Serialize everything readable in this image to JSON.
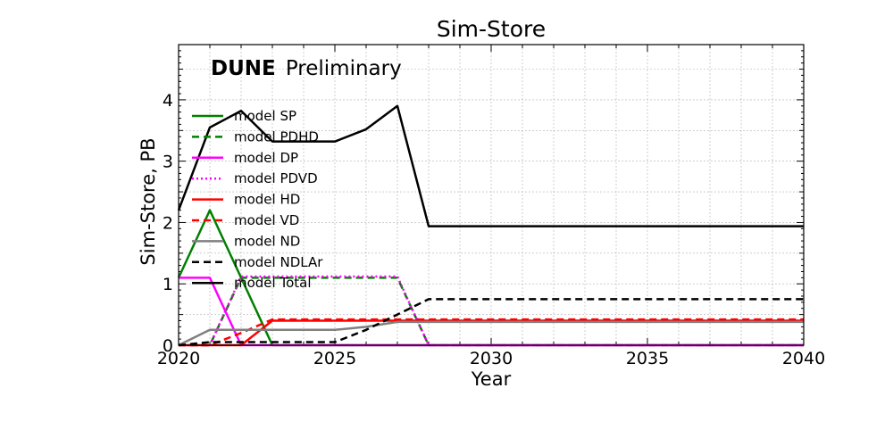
{
  "chart_data": {
    "type": "line",
    "title": "Sim-Store",
    "xlabel": "Year",
    "ylabel": "Sim-Store, PB",
    "xlim": [
      2020,
      2040
    ],
    "ylim": [
      0,
      4.9
    ],
    "xticks": [
      2020,
      2025,
      2030,
      2035,
      2040
    ],
    "yticks": [
      0,
      1,
      2,
      3,
      4
    ],
    "grid": true,
    "legend_position": "upper-left",
    "annotation": {
      "brand": "DUNE",
      "text": "Preliminary"
    },
    "x": [
      2020,
      2021,
      2022,
      2023,
      2024,
      2025,
      2026,
      2027,
      2028,
      2029,
      2030,
      2031,
      2032,
      2033,
      2034,
      2035,
      2036,
      2037,
      2038,
      2039,
      2040
    ],
    "series": [
      {
        "name": "model SP",
        "color": "#008000",
        "dash": "solid",
        "values": [
          1.1,
          2.2,
          1.1,
          0,
          0,
          0,
          0,
          0,
          0,
          0,
          0,
          0,
          0,
          0,
          0,
          0,
          0,
          0,
          0,
          0,
          0
        ]
      },
      {
        "name": "model PDHD",
        "color": "#008000",
        "dash": "dashed",
        "values": [
          0,
          0,
          1.1,
          1.1,
          1.1,
          1.1,
          1.1,
          1.1,
          0,
          0,
          0,
          0,
          0,
          0,
          0,
          0,
          0,
          0,
          0,
          0,
          0
        ]
      },
      {
        "name": "model DP",
        "color": "#ff00ff",
        "dash": "solid",
        "values": [
          1.1,
          1.1,
          0,
          0,
          0,
          0,
          0,
          0,
          0,
          0,
          0,
          0,
          0,
          0,
          0,
          0,
          0,
          0,
          0,
          0,
          0
        ]
      },
      {
        "name": "model PDVD",
        "color": "#ff00ff",
        "dash": "dotted",
        "values": [
          0,
          0,
          1.12,
          1.12,
          1.12,
          1.12,
          1.12,
          1.12,
          0,
          0,
          0,
          0,
          0,
          0,
          0,
          0,
          0,
          0,
          0,
          0,
          0
        ]
      },
      {
        "name": "model HD",
        "color": "#ff0000",
        "dash": "solid",
        "values": [
          0,
          0,
          0,
          0.4,
          0.4,
          0.4,
          0.4,
          0.4,
          0.4,
          0.4,
          0.4,
          0.4,
          0.4,
          0.4,
          0.4,
          0.4,
          0.4,
          0.4,
          0.4,
          0.4,
          0.4
        ]
      },
      {
        "name": "model VD",
        "color": "#ff0000",
        "dash": "dashed",
        "values": [
          0,
          0,
          0.2,
          0.42,
          0.42,
          0.42,
          0.42,
          0.42,
          0.42,
          0.42,
          0.42,
          0.42,
          0.42,
          0.42,
          0.42,
          0.42,
          0.42,
          0.42,
          0.42,
          0.42,
          0.42
        ]
      },
      {
        "name": "model ND",
        "color": "#808080",
        "dash": "solid",
        "values": [
          0,
          0.25,
          0.25,
          0.25,
          0.25,
          0.25,
          0.3,
          0.38,
          0.38,
          0.38,
          0.38,
          0.38,
          0.38,
          0.38,
          0.38,
          0.38,
          0.38,
          0.38,
          0.38,
          0.38,
          0.38
        ]
      },
      {
        "name": "model NDLAr",
        "color": "#000000",
        "dash": "dashed",
        "values": [
          0,
          0.05,
          0.05,
          0.05,
          0.05,
          0.05,
          0.25,
          0.5,
          0.75,
          0.75,
          0.75,
          0.75,
          0.75,
          0.75,
          0.75,
          0.75,
          0.75,
          0.75,
          0.75,
          0.75,
          0.75
        ]
      },
      {
        "name": "model Total",
        "color": "#000000",
        "dash": "solid",
        "values": [
          2.2,
          3.55,
          3.82,
          3.32,
          3.32,
          3.32,
          3.52,
          3.9,
          1.94,
          1.94,
          1.94,
          1.94,
          1.94,
          1.94,
          1.94,
          1.94,
          1.94,
          1.94,
          1.94,
          1.94,
          1.94
        ]
      }
    ]
  }
}
